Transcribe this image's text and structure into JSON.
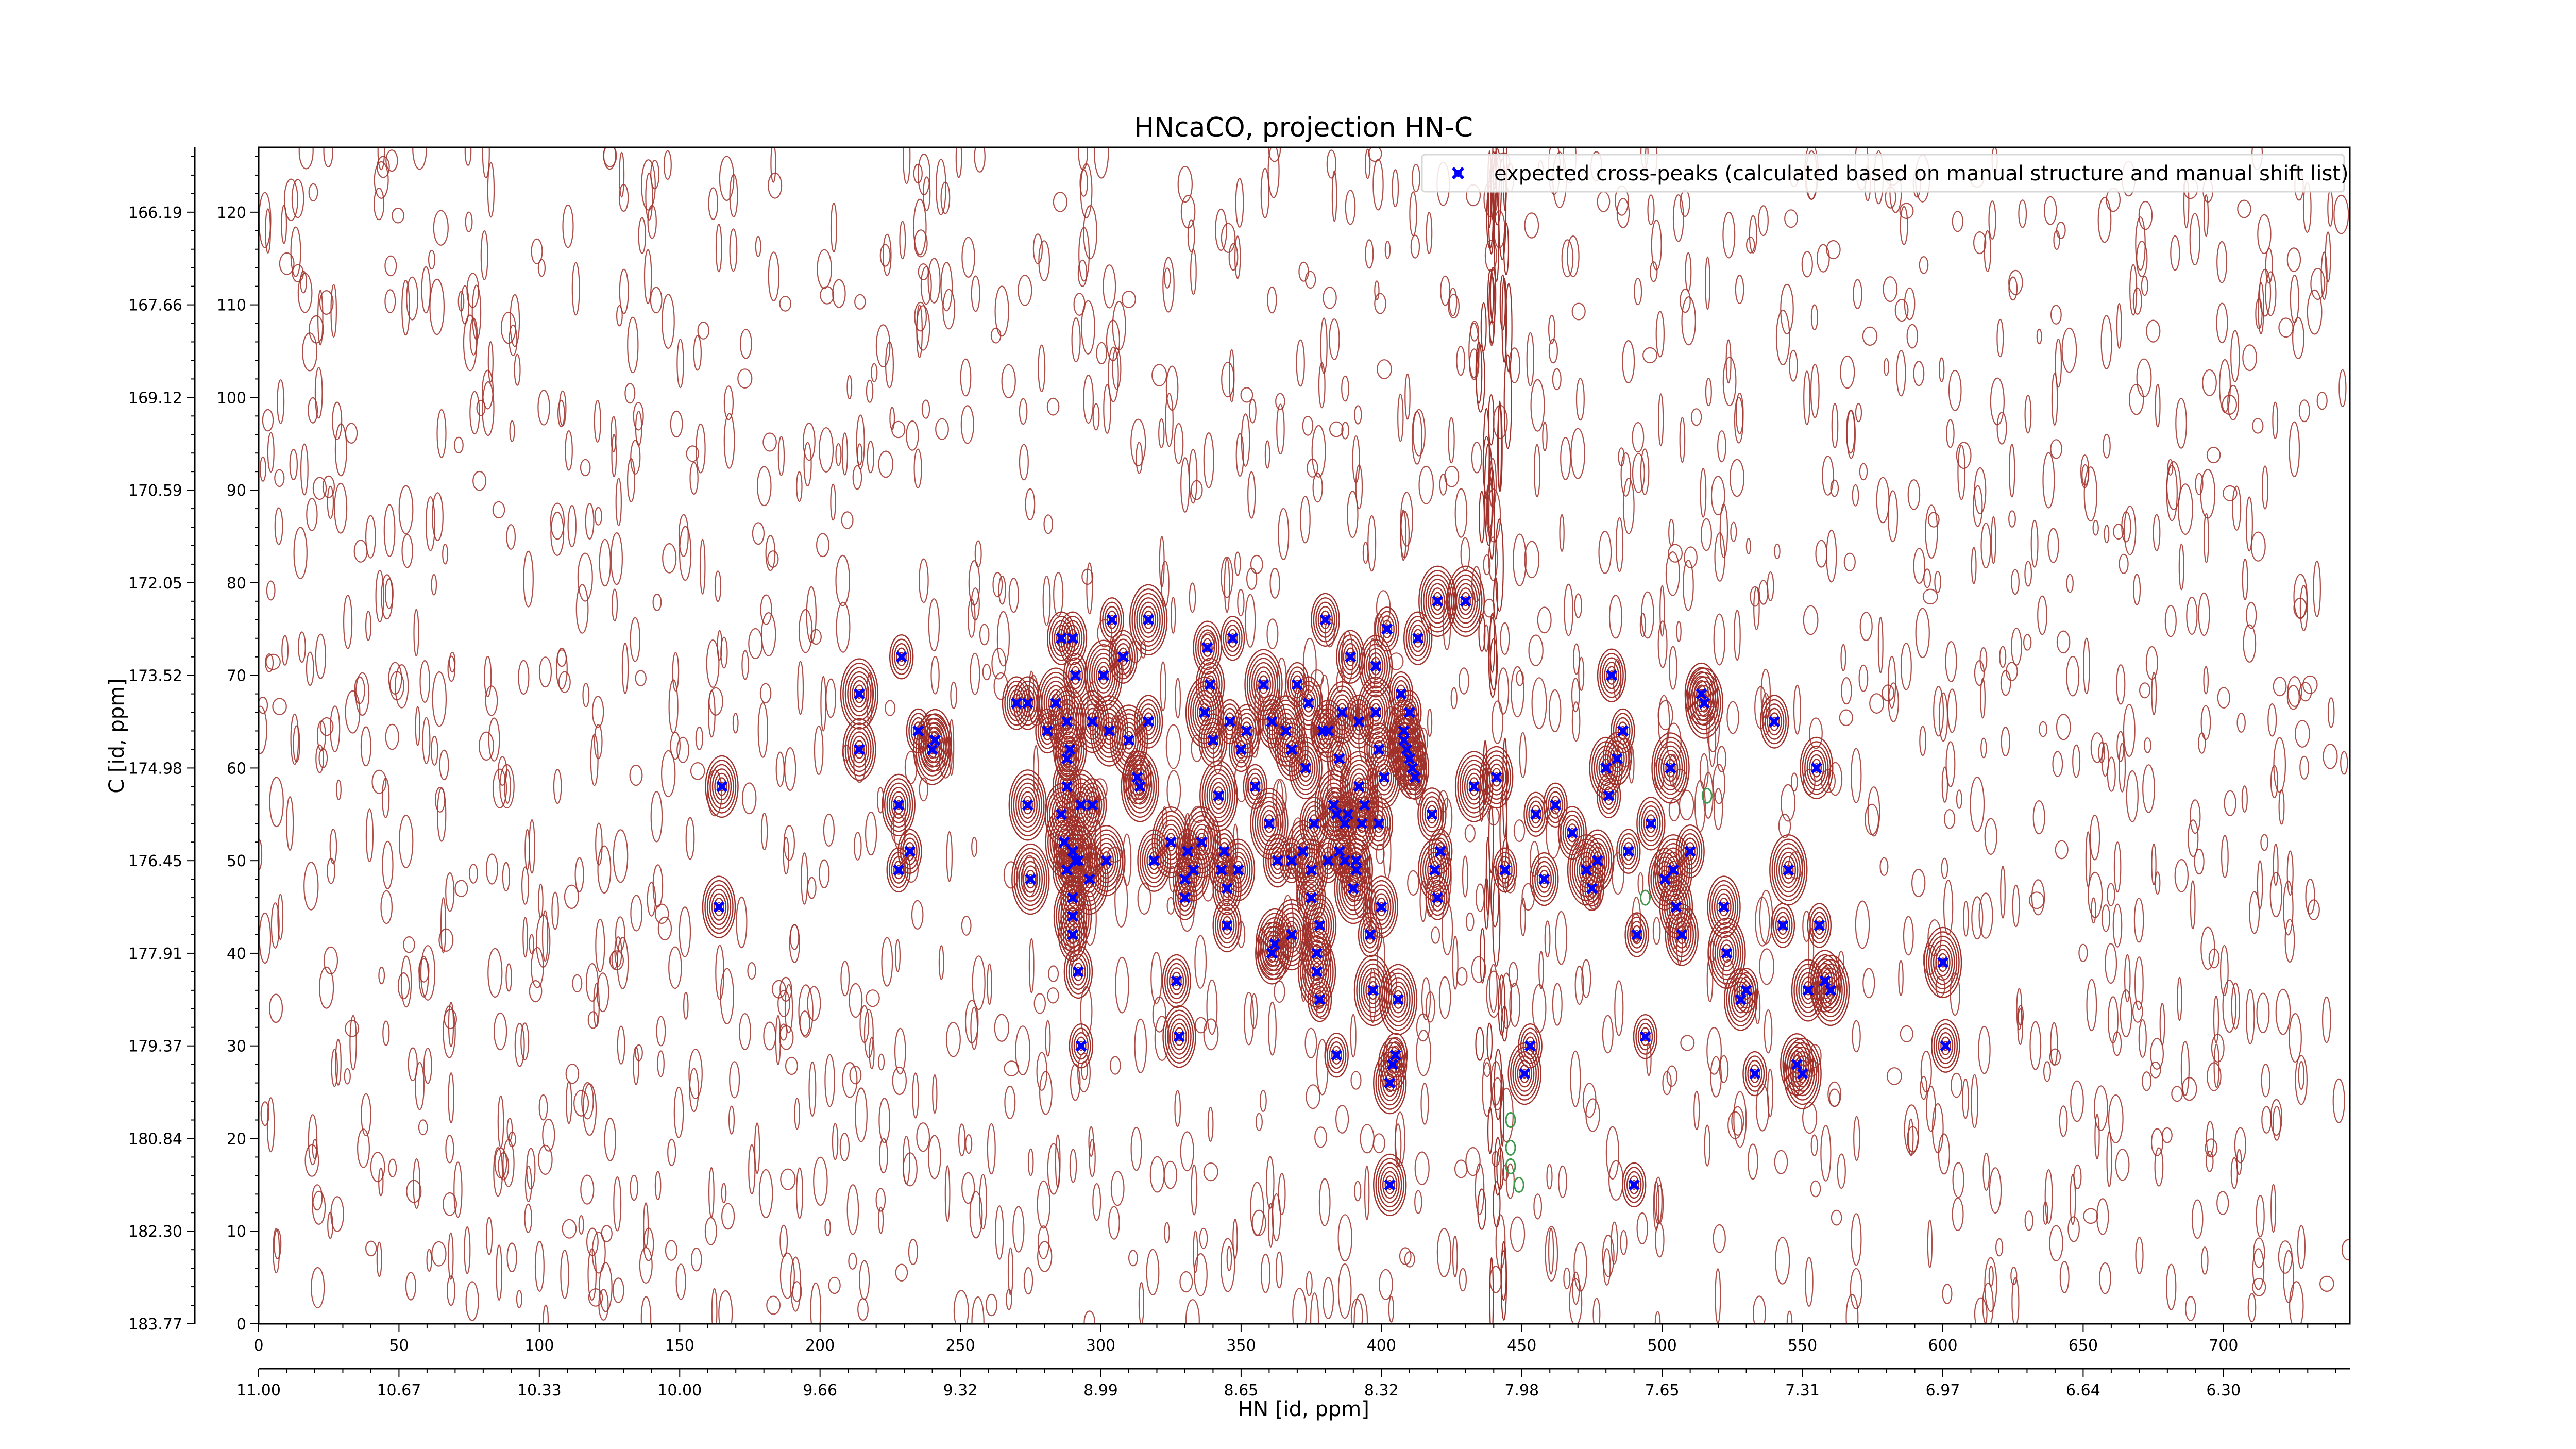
{
  "chart_data": {
    "type": "scatter",
    "title": "HNcaCO, projection HN-C",
    "xlabel": "HN [id, ppm]",
    "ylabel": "C [id, ppm]",
    "xlim": [
      0,
      745
    ],
    "ylim": [
      0,
      127
    ],
    "x_point_ticks": [
      0,
      50,
      100,
      150,
      200,
      250,
      300,
      350,
      400,
      450,
      500,
      550,
      600,
      650,
      700
    ],
    "x_ppm_ticks": [
      "11.00",
      "10.67",
      "10.33",
      "10.00",
      "9.66",
      "9.32",
      "8.99",
      "8.65",
      "8.32",
      "7.98",
      "7.65",
      "7.31",
      "6.97",
      "6.64",
      "6.30"
    ],
    "y_point_ticks": [
      0,
      10,
      20,
      30,
      40,
      50,
      60,
      70,
      80,
      90,
      100,
      110,
      120
    ],
    "y_ppm_ticks": [
      "183.77",
      "182.30",
      "180.84",
      "179.37",
      "177.91",
      "176.45",
      "174.98",
      "173.52",
      "172.05",
      "170.59",
      "169.12",
      "167.66",
      "166.19"
    ],
    "legend": {
      "label": "expected cross-peaks (calculated based on manual structure and manual shift list)",
      "placement": "top-right"
    },
    "colors": {
      "marker": "#0000ff",
      "positive_contour": "#a0302a",
      "negative_contour": "#3c9a4a",
      "frame": "#000000"
    },
    "series": [
      {
        "points": [
          [
            165,
            58
          ],
          [
            164,
            45
          ],
          [
            214,
            68
          ],
          [
            214,
            62
          ],
          [
            229,
            72
          ],
          [
            228,
            56
          ],
          [
            228,
            49
          ],
          [
            232,
            51
          ],
          [
            235,
            64
          ],
          [
            241,
            63
          ],
          [
            240,
            62
          ],
          [
            270,
            67
          ],
          [
            274,
            67
          ],
          [
            274,
            56
          ],
          [
            275,
            48
          ],
          [
            281,
            64
          ],
          [
            284,
            67
          ],
          [
            286,
            74
          ],
          [
            288,
            58
          ],
          [
            288,
            61
          ],
          [
            288,
            65
          ],
          [
            289,
            62
          ],
          [
            290,
            74
          ],
          [
            291,
            70
          ],
          [
            293,
            56
          ],
          [
            292,
            50
          ],
          [
            290,
            51
          ],
          [
            291,
            50
          ],
          [
            288,
            49
          ],
          [
            286,
            55
          ],
          [
            287,
            52
          ],
          [
            290,
            46
          ],
          [
            290,
            44
          ],
          [
            290,
            42
          ],
          [
            292,
            38
          ],
          [
            293,
            30
          ],
          [
            296,
            48
          ],
          [
            297,
            56
          ],
          [
            297,
            65
          ],
          [
            301,
            70
          ],
          [
            303,
            64
          ],
          [
            302,
            50
          ],
          [
            304,
            76
          ],
          [
            308,
            72
          ],
          [
            310,
            63
          ],
          [
            313,
            59
          ],
          [
            314,
            58
          ],
          [
            317,
            65
          ],
          [
            317,
            76
          ],
          [
            319,
            50
          ],
          [
            325,
            52
          ],
          [
            327,
            37
          ],
          [
            328,
            31
          ],
          [
            330,
            46
          ],
          [
            331,
            51
          ],
          [
            330,
            48
          ],
          [
            333,
            49
          ],
          [
            336,
            52
          ],
          [
            338,
            73
          ],
          [
            337,
            66
          ],
          [
            339,
            69
          ],
          [
            340,
            63
          ],
          [
            342,
            57
          ],
          [
            343,
            49
          ],
          [
            344,
            51
          ],
          [
            345,
            43
          ],
          [
            345,
            47
          ],
          [
            346,
            65
          ],
          [
            347,
            74
          ],
          [
            349,
            49
          ],
          [
            350,
            62
          ],
          [
            352,
            64
          ],
          [
            355,
            58
          ],
          [
            358,
            69
          ],
          [
            360,
            54
          ],
          [
            361,
            65
          ],
          [
            363,
            50
          ],
          [
            361,
            40
          ],
          [
            362,
            41
          ],
          [
            366,
            64
          ],
          [
            368,
            42
          ],
          [
            368,
            62
          ],
          [
            368,
            50
          ],
          [
            370,
            69
          ],
          [
            372,
            51
          ],
          [
            374,
            67
          ],
          [
            373,
            60
          ],
          [
            375,
            49
          ],
          [
            375,
            46
          ],
          [
            376,
            54
          ],
          [
            377,
            40
          ],
          [
            377,
            38
          ],
          [
            378,
            43
          ],
          [
            378,
            35
          ],
          [
            380,
            76
          ],
          [
            379,
            64
          ],
          [
            381,
            64
          ],
          [
            381,
            50
          ],
          [
            383,
            56
          ],
          [
            384,
            55
          ],
          [
            384,
            29
          ],
          [
            385,
            61
          ],
          [
            385,
            51
          ],
          [
            386,
            66
          ],
          [
            387,
            54
          ],
          [
            387,
            50
          ],
          [
            388,
            55
          ],
          [
            389,
            72
          ],
          [
            390,
            47
          ],
          [
            391,
            50
          ],
          [
            391,
            49
          ],
          [
            392,
            65
          ],
          [
            392,
            58
          ],
          [
            393,
            54
          ],
          [
            394,
            56
          ],
          [
            396,
            42
          ],
          [
            397,
            36
          ],
          [
            398,
            71
          ],
          [
            398,
            66
          ],
          [
            399,
            54
          ],
          [
            399,
            62
          ],
          [
            400,
            45
          ],
          [
            401,
            59
          ],
          [
            402,
            75
          ],
          [
            403,
            26
          ],
          [
            404,
            28
          ],
          [
            405,
            29
          ],
          [
            406,
            35
          ],
          [
            407,
            68
          ],
          [
            408,
            64
          ],
          [
            408,
            63
          ],
          [
            409,
            62
          ],
          [
            410,
            61
          ],
          [
            410,
            66
          ],
          [
            411,
            60
          ],
          [
            412,
            59
          ],
          [
            413,
            74
          ],
          [
            418,
            55
          ],
          [
            419,
            49
          ],
          [
            421,
            51
          ],
          [
            420,
            46
          ],
          [
            420,
            78
          ],
          [
            430,
            78
          ],
          [
            433,
            58
          ],
          [
            441,
            59
          ],
          [
            444,
            49
          ],
          [
            451,
            27
          ],
          [
            453,
            30
          ],
          [
            455,
            55
          ],
          [
            458,
            48
          ],
          [
            462,
            56
          ],
          [
            468,
            53
          ],
          [
            473,
            49
          ],
          [
            475,
            47
          ],
          [
            477,
            50
          ],
          [
            480,
            60
          ],
          [
            481,
            57
          ],
          [
            482,
            70
          ],
          [
            484,
            61
          ],
          [
            486,
            64
          ],
          [
            488,
            51
          ],
          [
            491,
            42
          ],
          [
            494,
            31
          ],
          [
            496,
            54
          ],
          [
            501,
            48
          ],
          [
            503,
            60
          ],
          [
            504,
            49
          ],
          [
            505,
            45
          ],
          [
            507,
            42
          ],
          [
            510,
            51
          ],
          [
            514,
            68
          ],
          [
            515,
            67
          ],
          [
            522,
            45
          ],
          [
            523,
            40
          ],
          [
            528,
            35
          ],
          [
            530,
            36
          ],
          [
            533,
            27
          ],
          [
            540,
            65
          ],
          [
            543,
            43
          ],
          [
            545,
            49
          ],
          [
            548,
            28
          ],
          [
            550,
            27
          ],
          [
            552,
            36
          ],
          [
            555,
            60
          ],
          [
            556,
            43
          ],
          [
            558,
            37
          ],
          [
            560,
            36
          ],
          [
            600,
            39
          ],
          [
            601,
            30
          ],
          [
            403,
            15
          ],
          [
            490,
            15
          ]
        ]
      }
    ]
  }
}
